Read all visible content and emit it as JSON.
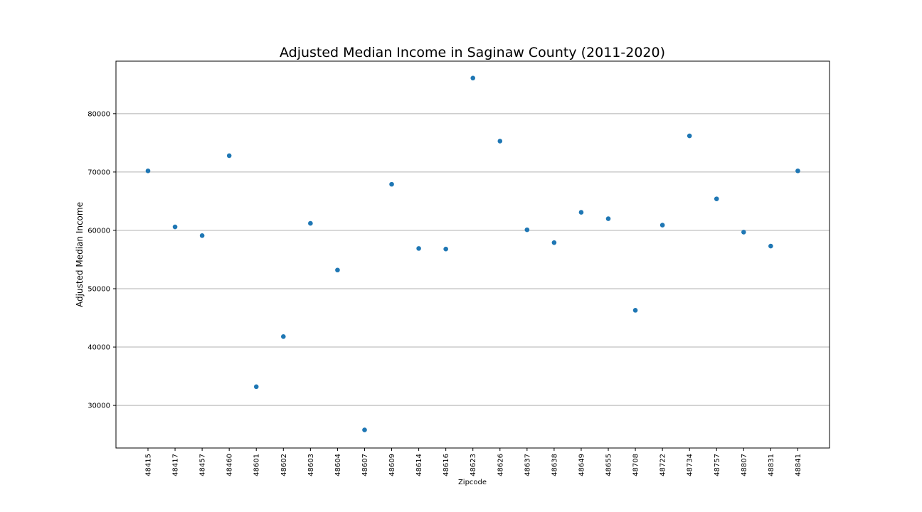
{
  "chart_data": {
    "type": "scatter",
    "title": "Adjusted Median Income in Saginaw County (2011-2020)",
    "xlabel": "Zipcode",
    "ylabel": "Adjusted Median Income",
    "categories": [
      "48415",
      "48417",
      "48457",
      "48460",
      "48601",
      "48602",
      "48603",
      "48604",
      "48607",
      "48609",
      "48614",
      "48616",
      "48623",
      "48626",
      "48637",
      "48638",
      "48649",
      "48655",
      "48708",
      "48722",
      "48734",
      "48757",
      "48807",
      "48831",
      "48841"
    ],
    "values": [
      70200,
      60600,
      59100,
      72800,
      33200,
      41800,
      61200,
      53200,
      25800,
      67900,
      56900,
      56800,
      86100,
      75300,
      60100,
      57900,
      63100,
      62000,
      46300,
      60900,
      76200,
      65400,
      59700,
      57300,
      70200
    ],
    "ylim": [
      22700,
      89000
    ],
    "yticks": [
      30000,
      40000,
      50000,
      60000,
      70000,
      80000
    ],
    "grid": "y",
    "legend": "none",
    "marker_color": "#1f77b4"
  }
}
